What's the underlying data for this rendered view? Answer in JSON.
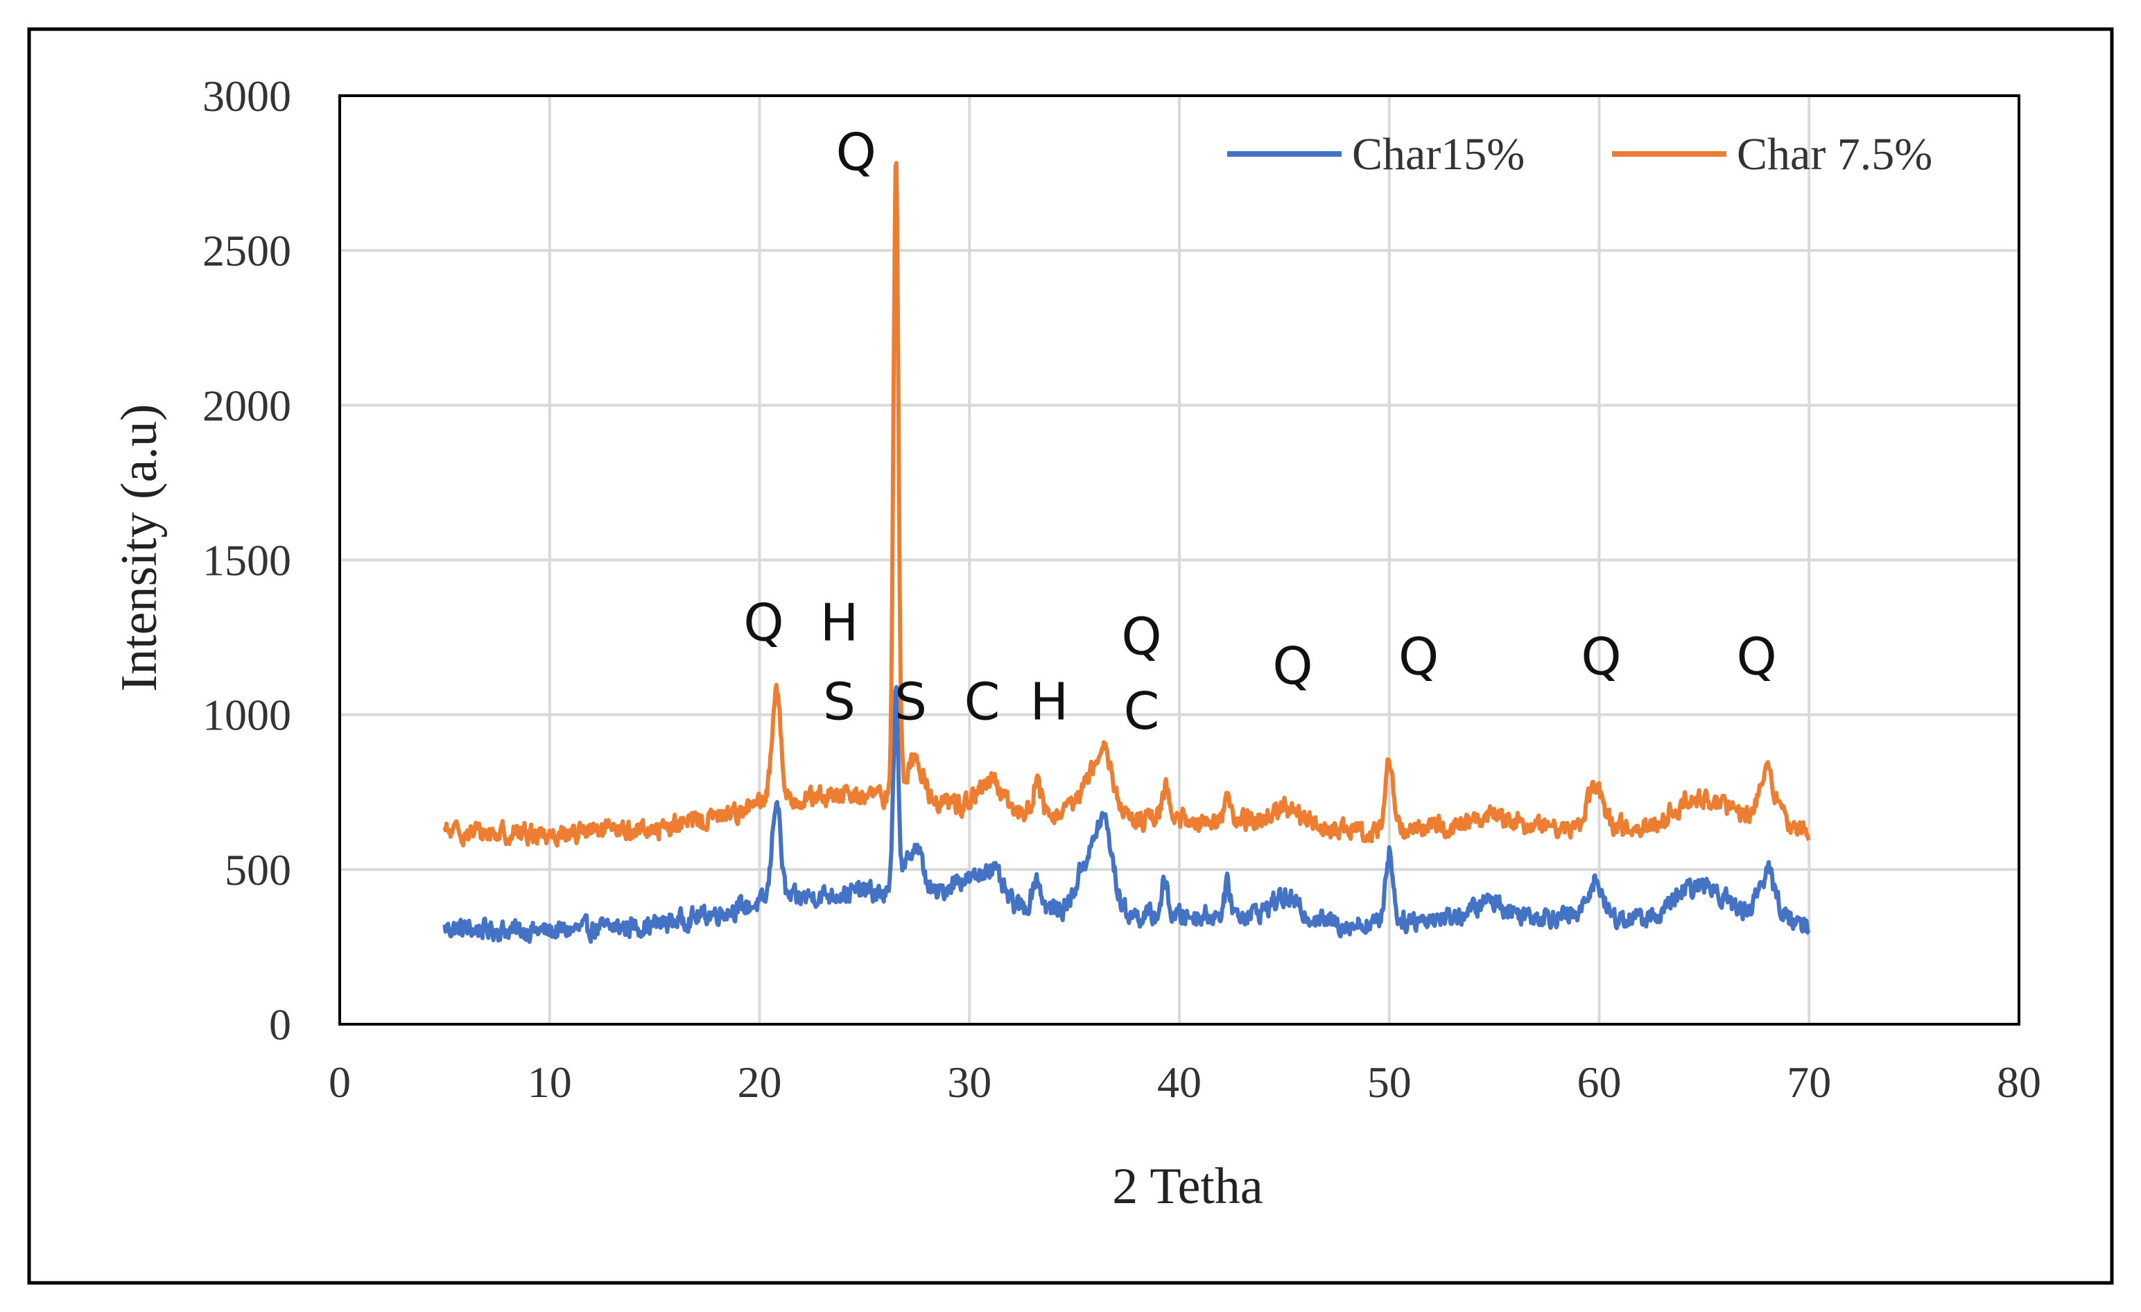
{
  "chart_data": {
    "type": "line",
    "title": "",
    "xlabel": "2 Tetha",
    "ylabel": "Intensity (a.u)",
    "xlim": [
      0,
      80
    ],
    "ylim": [
      0,
      3000
    ],
    "xticks": [
      0,
      10,
      20,
      30,
      40,
      50,
      60,
      70,
      80
    ],
    "yticks": [
      0,
      500,
      1000,
      1500,
      2000,
      2500,
      3000
    ],
    "grid": true,
    "legend_position": "top-right",
    "colors": {
      "char15": "#4472C4",
      "char75": "#ED7D31"
    },
    "series": [
      {
        "name": "Char15%",
        "color": "#4472C4",
        "baseline": [
          [
            5,
            310
          ],
          [
            10,
            300
          ],
          [
            15,
            320
          ],
          [
            18,
            360
          ],
          [
            20,
            390
          ],
          [
            22,
            410
          ],
          [
            25,
            430
          ],
          [
            28,
            400
          ],
          [
            30,
            410
          ],
          [
            32,
            380
          ],
          [
            34,
            370
          ],
          [
            36,
            380
          ],
          [
            38,
            350
          ],
          [
            40,
            350
          ],
          [
            45,
            360
          ],
          [
            48,
            320
          ],
          [
            50,
            330
          ],
          [
            55,
            360
          ],
          [
            58,
            350
          ],
          [
            62,
            340
          ],
          [
            64,
            370
          ],
          [
            66,
            380
          ],
          [
            70,
            320
          ]
        ],
        "peaks": [
          [
            20.8,
            330,
            0.2
          ],
          [
            26.5,
            650,
            0.12
          ],
          [
            27.4,
            170,
            0.4
          ],
          [
            29.5,
            60,
            0.6
          ],
          [
            31.0,
            110,
            0.5
          ],
          [
            33.2,
            100,
            0.2
          ],
          [
            35.5,
            130,
            0.4
          ],
          [
            36.4,
            280,
            0.4
          ],
          [
            39.3,
            110,
            0.15
          ],
          [
            42.3,
            90,
            0.15
          ],
          [
            45.0,
            50,
            0.6
          ],
          [
            50.0,
            230,
            0.18
          ],
          [
            54.8,
            40,
            0.6
          ],
          [
            59.8,
            120,
            0.35
          ],
          [
            64.0,
            50,
            0.5
          ],
          [
            65.2,
            70,
            0.6
          ],
          [
            68.0,
            140,
            0.4
          ]
        ]
      },
      {
        "name": "Char 7.5%",
        "color": "#ED7D31",
        "baseline": [
          [
            5,
            620
          ],
          [
            10,
            615
          ],
          [
            15,
            630
          ],
          [
            18,
            670
          ],
          [
            20,
            710
          ],
          [
            22,
            730
          ],
          [
            25,
            740
          ],
          [
            28,
            720
          ],
          [
            30,
            710
          ],
          [
            32,
            690
          ],
          [
            34,
            670
          ],
          [
            36,
            690
          ],
          [
            38,
            660
          ],
          [
            40,
            660
          ],
          [
            45,
            660
          ],
          [
            48,
            620
          ],
          [
            50,
            630
          ],
          [
            55,
            650
          ],
          [
            58,
            640
          ],
          [
            62,
            640
          ],
          [
            64,
            670
          ],
          [
            66,
            680
          ],
          [
            70,
            630
          ]
        ],
        "peaks": [
          [
            20.8,
            380,
            0.2
          ],
          [
            26.5,
            2050,
            0.12
          ],
          [
            27.4,
            130,
            0.4
          ],
          [
            31.0,
            80,
            0.5
          ],
          [
            33.2,
            100,
            0.2
          ],
          [
            35.5,
            80,
            0.4
          ],
          [
            36.4,
            220,
            0.4
          ],
          [
            39.3,
            110,
            0.15
          ],
          [
            42.3,
            60,
            0.15
          ],
          [
            45.0,
            40,
            0.6
          ],
          [
            50.0,
            220,
            0.18
          ],
          [
            54.8,
            30,
            0.6
          ],
          [
            59.8,
            120,
            0.35
          ],
          [
            64.0,
            40,
            0.5
          ],
          [
            65.2,
            50,
            0.6
          ],
          [
            68.0,
            160,
            0.4
          ]
        ]
      }
    ],
    "annotations": [
      {
        "label": "Q",
        "x": 24.6,
        "y": 2760
      },
      {
        "label": "Q",
        "x": 20.2,
        "y": 1240
      },
      {
        "label": "H",
        "x": 23.8,
        "y": 1240
      },
      {
        "label": "S",
        "x": 23.8,
        "y": 985
      },
      {
        "label": "S",
        "x": 27.2,
        "y": 985
      },
      {
        "label": "C",
        "x": 30.6,
        "y": 985
      },
      {
        "label": "H",
        "x": 33.8,
        "y": 985
      },
      {
        "label": "Q",
        "x": 38.2,
        "y": 1195
      },
      {
        "label": "C",
        "x": 38.2,
        "y": 955
      },
      {
        "label": "Q",
        "x": 45.4,
        "y": 1100
      },
      {
        "label": "Q",
        "x": 51.4,
        "y": 1130
      },
      {
        "label": "Q",
        "x": 60.1,
        "y": 1130
      },
      {
        "label": "Q",
        "x": 67.5,
        "y": 1130
      }
    ]
  }
}
